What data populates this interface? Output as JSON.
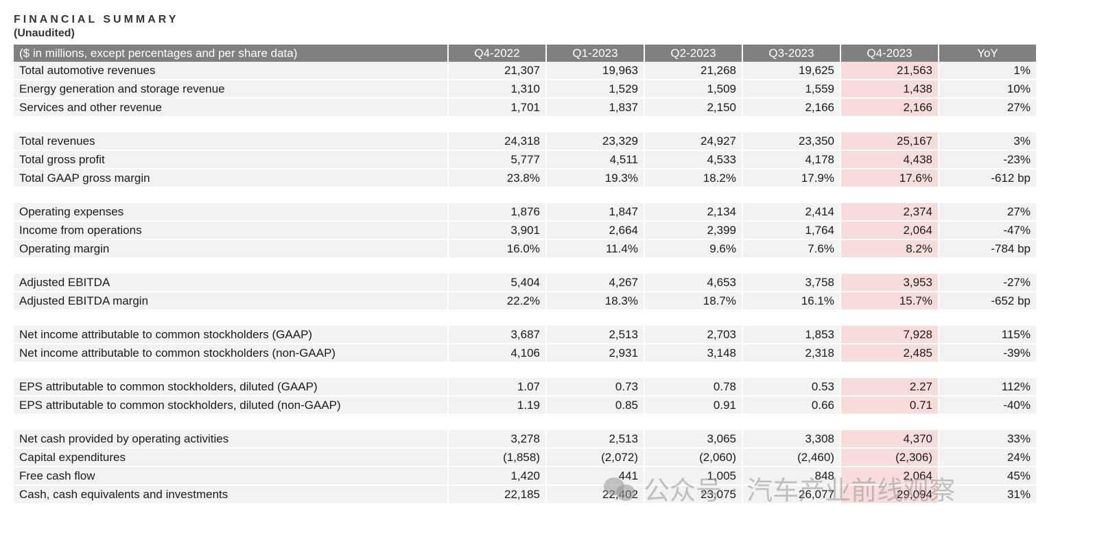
{
  "title": "FINANCIAL SUMMARY",
  "subtitle": "(Unaudited)",
  "table": {
    "header": [
      "($ in millions, except percentages and per share data)",
      "Q4-2022",
      "Q1-2023",
      "Q2-2023",
      "Q3-2023",
      "Q4-2023",
      "YoY"
    ],
    "groups": [
      [
        [
          "Total automotive revenues",
          "21,307",
          "19,963",
          "21,268",
          "19,625",
          "21,563",
          "1%"
        ],
        [
          "Energy generation and storage revenue",
          "1,310",
          "1,529",
          "1,509",
          "1,559",
          "1,438",
          "10%"
        ],
        [
          "Services and other revenue",
          "1,701",
          "1,837",
          "2,150",
          "2,166",
          "2,166",
          "27%"
        ]
      ],
      [
        [
          "Total revenues",
          "24,318",
          "23,329",
          "24,927",
          "23,350",
          "25,167",
          "3%"
        ],
        [
          "Total gross profit",
          "5,777",
          "4,511",
          "4,533",
          "4,178",
          "4,438",
          "-23%"
        ],
        [
          "Total GAAP gross margin",
          "23.8%",
          "19.3%",
          "18.2%",
          "17.9%",
          "17.6%",
          "-612 bp"
        ]
      ],
      [
        [
          "Operating expenses",
          "1,876",
          "1,847",
          "2,134",
          "2,414",
          "2,374",
          "27%"
        ],
        [
          "Income from operations",
          "3,901",
          "2,664",
          "2,399",
          "1,764",
          "2,064",
          "-47%"
        ],
        [
          "Operating margin",
          "16.0%",
          "11.4%",
          "9.6%",
          "7.6%",
          "8.2%",
          "-784 bp"
        ]
      ],
      [
        [
          "Adjusted EBITDA",
          "5,404",
          "4,267",
          "4,653",
          "3,758",
          "3,953",
          "-27%"
        ],
        [
          "Adjusted EBITDA margin",
          "22.2%",
          "18.3%",
          "18.7%",
          "16.1%",
          "15.7%",
          "-652 bp"
        ]
      ],
      [
        [
          "Net income attributable to common stockholders (GAAP)",
          "3,687",
          "2,513",
          "2,703",
          "1,853",
          "7,928",
          "115%"
        ],
        [
          "Net income attributable to common stockholders (non-GAAP)",
          "4,106",
          "2,931",
          "3,148",
          "2,318",
          "2,485",
          "-39%"
        ]
      ],
      [
        [
          "EPS attributable to common stockholders, diluted (GAAP)",
          "1.07",
          "0.73",
          "0.78",
          "0.53",
          "2.27",
          "112%"
        ],
        [
          "EPS attributable to common stockholders, diluted (non-GAAP)",
          "1.19",
          "0.85",
          "0.91",
          "0.66",
          "0.71",
          "-40%"
        ]
      ],
      [
        [
          "Net cash provided by operating activities",
          "3,278",
          "2,513",
          "3,065",
          "3,308",
          "4,370",
          "33%"
        ],
        [
          "Capital expenditures",
          "(1,858)",
          "(2,072)",
          "(2,060)",
          "(2,460)",
          "(2,306)",
          "24%"
        ],
        [
          "Free cash flow",
          "1,420",
          "441",
          "1,005",
          "848",
          "2,064",
          "45%"
        ],
        [
          "Cash, cash equivalents and investments",
          "22,185",
          "22,402",
          "23,075",
          "26,077",
          "29,094",
          "31%"
        ]
      ]
    ]
  },
  "watermark": "公众号 · 汽车产业前线观察",
  "colors": {
    "header_bg": "#808080",
    "row_bg": "#f2f2f2",
    "highlight_bg": "#f8dcdc"
  }
}
